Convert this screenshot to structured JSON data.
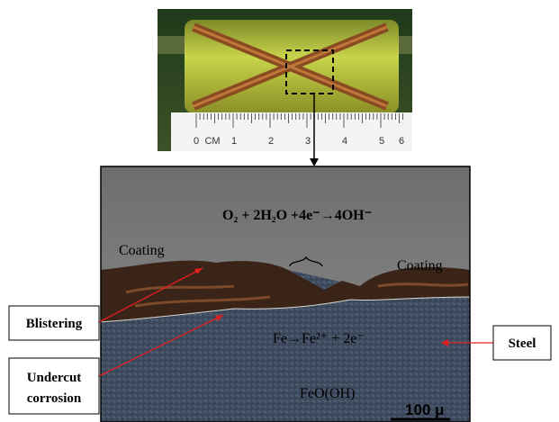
{
  "photo": {
    "ruler": {
      "labels": [
        "0",
        "CM",
        "1",
        "2",
        "3",
        "4",
        "5",
        "6"
      ]
    }
  },
  "micrograph": {
    "reaction_cathodic": "O₂ + 2H₂O +4e⁻→4OH⁻",
    "coating_left": "Coating",
    "coating_right": "Coating",
    "reaction_anodic": "Fe→Fe²⁺ + 2e⁻",
    "product": "FeO(OH)",
    "scale_bar": "100 μ"
  },
  "callouts": {
    "blistering": "Blistering",
    "undercut": [
      "Undercut",
      "corrosion"
    ],
    "steel": "Steel"
  }
}
